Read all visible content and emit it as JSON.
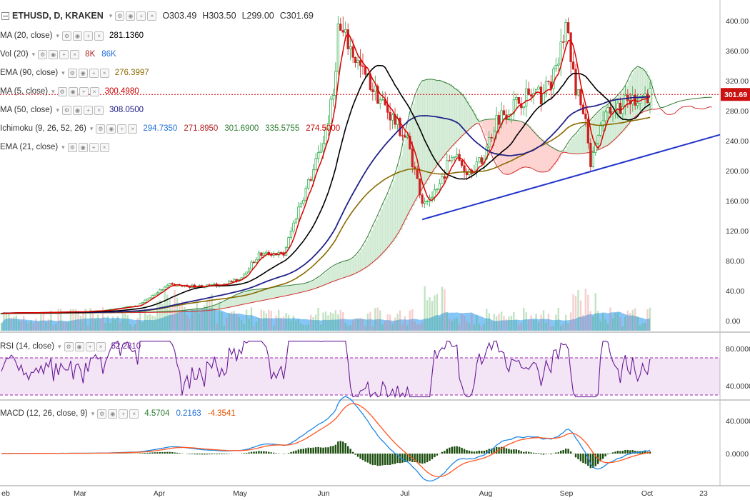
{
  "header": {
    "symbol": "ETHUSD, D, KRAKEN",
    "open": "O303.49",
    "high": "H303.50",
    "low": "L299.00",
    "close": "C301.69"
  },
  "legend": [
    {
      "name": "ma20",
      "label": "MA (20, close)",
      "values": [
        {
          "v": "281.1360",
          "c": "#000000"
        }
      ]
    },
    {
      "name": "vol20",
      "label": "Vol (20)",
      "values": [
        {
          "v": "8K",
          "c": "#b22222"
        },
        {
          "v": "86K",
          "c": "#1e6fd9"
        }
      ]
    },
    {
      "name": "ema90",
      "label": "EMA (90, close)",
      "values": [
        {
          "v": "276.3997",
          "c": "#8a6a00"
        }
      ]
    },
    {
      "name": "ma5",
      "label": "MA (5, close)",
      "values": [
        {
          "v": "300.4980",
          "c": "#cc0000"
        }
      ]
    },
    {
      "name": "ma50",
      "label": "MA (50, close)",
      "values": [
        {
          "v": "308.0500",
          "c": "#1a1a80"
        }
      ]
    },
    {
      "name": "ichimoku",
      "label": "Ichimoku (9, 26, 52, 26)",
      "values": [
        {
          "v": "294.7350",
          "c": "#1e6fd9"
        },
        {
          "v": "271.8950",
          "c": "#b22222"
        },
        {
          "v": "301.6900",
          "c": "#2e7d32"
        },
        {
          "v": "335.5755",
          "c": "#2e7d32"
        },
        {
          "v": "274.5000",
          "c": "#cc0000"
        }
      ]
    },
    {
      "name": "ema21",
      "label": "EMA (21, close)",
      "values": []
    }
  ],
  "rsi_legend": {
    "label": "RSI (14, close)",
    "value": "52.2810"
  },
  "macd_legend": {
    "label": "MACD (12, 26, close, 9)",
    "values": [
      {
        "v": "4.5704",
        "c": "#2e7d32"
      },
      {
        "v": "0.2163",
        "c": "#1e6fd9"
      },
      {
        "v": "-4.3541",
        "c": "#e65100"
      }
    ]
  },
  "current_price": "301.69",
  "colors": {
    "up": "#22aa44",
    "down": "#cc2222",
    "ma5": "#dd0000",
    "ma20": "#000000",
    "ma50": "#22228a",
    "ema90": "#8a6a00",
    "trend": "#2233cc",
    "rsi": "#6a1b9a",
    "macd": "#1e88e5",
    "signal": "#ff5722",
    "hist": "#1b4d0e"
  },
  "chart_data": {
    "type": "candlestick",
    "x_axis": {
      "labels": [
        "eb",
        "Mar",
        "Apr",
        "May",
        "Jun",
        "Jul",
        "Aug",
        "Sep",
        "Oct",
        "23"
      ]
    },
    "price_axis": {
      "ticks": [
        "400.00",
        "360.00",
        "320.00",
        "280.00",
        "240.00",
        "200.00",
        "160.00",
        "120.00",
        "80.00",
        "40.00",
        "0.00"
      ],
      "ylim": [
        0,
        420
      ]
    },
    "rsi_axis": {
      "ticks": [
        "80.0000",
        "40.0000"
      ],
      "bands": [
        30,
        70
      ]
    },
    "macd_axis": {
      "ticks": [
        "40.0000",
        "0.0000"
      ]
    },
    "price_anchors": [
      [
        0,
        10
      ],
      [
        20,
        11
      ],
      [
        40,
        13
      ],
      [
        55,
        20
      ],
      [
        62,
        36
      ],
      [
        68,
        48
      ],
      [
        74,
        46
      ],
      [
        82,
        46
      ],
      [
        88,
        48
      ],
      [
        96,
        55
      ],
      [
        104,
        88
      ],
      [
        110,
        90
      ],
      [
        114,
        88
      ],
      [
        120,
        150
      ],
      [
        126,
        200
      ],
      [
        130,
        240
      ],
      [
        134,
        300
      ],
      [
        136,
        390
      ],
      [
        140,
        370
      ],
      [
        146,
        330
      ],
      [
        152,
        300
      ],
      [
        158,
        270
      ],
      [
        164,
        240
      ],
      [
        170,
        160
      ],
      [
        176,
        170
      ],
      [
        182,
        225
      ],
      [
        188,
        200
      ],
      [
        194,
        212
      ],
      [
        200,
        270
      ],
      [
        206,
        285
      ],
      [
        212,
        300
      ],
      [
        218,
        300
      ],
      [
        224,
        330
      ],
      [
        228,
        395
      ],
      [
        232,
        310
      ],
      [
        236,
        260
      ],
      [
        238,
        205
      ],
      [
        244,
        280
      ],
      [
        252,
        290
      ],
      [
        258,
        300
      ],
      [
        262,
        301.69
      ]
    ],
    "trendline": {
      "from": [
        170,
        135
      ],
      "to": [
        300,
        248
      ]
    },
    "resistance_line": 301.69
  }
}
